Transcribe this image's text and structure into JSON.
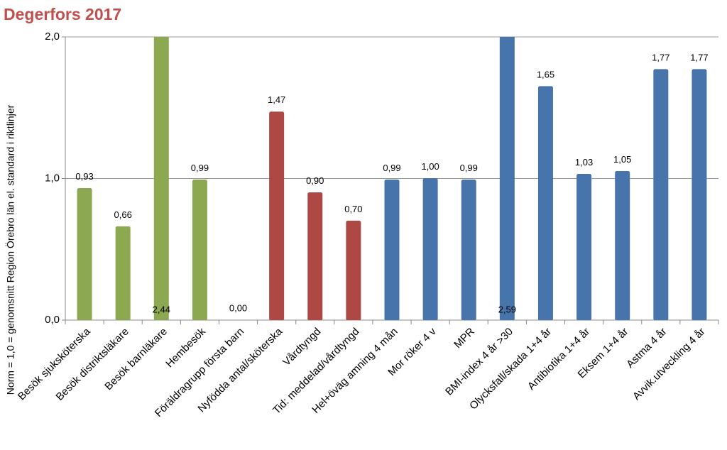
{
  "chart_data": {
    "type": "bar",
    "title": "Degerfors 2017",
    "y_label": "Norm = 1,0 = genomsnitt Region Örebro län el. standard i riktlinjer",
    "categories": [
      "Besök sjuksköterska",
      "Besök distriktsläkare",
      "Besök barnläkare",
      "Hembesök",
      "Föräldragrupp första barn",
      "Nyfödda antal/sköterska",
      "Vårdtyngd",
      "Tid: meddelad/vårdtyngd",
      "Hel+öväg amning 4 mån",
      "Mor röker 4 v",
      "MPR",
      "BMI-index 4 år >30",
      "Olycksfall/skada 1+4 år",
      "Antibiotika 1+4 år",
      "Eksem 1+4 år",
      "Astma 4 år",
      "Avvik.utveckling 4 år"
    ],
    "values": [
      0.93,
      0.66,
      2.44,
      0.99,
      0.0,
      1.47,
      0.9,
      0.7,
      0.99,
      1.0,
      0.99,
      2.59,
      1.65,
      1.03,
      1.05,
      1.77,
      1.77
    ],
    "value_labels": [
      "0,93",
      "0,66",
      "2,44",
      "0,99",
      "0,00",
      "1,47",
      "0,90",
      "0,70",
      "0,99",
      "1,00",
      "0,99",
      "2,59",
      "1,65",
      "1,03",
      "1,05",
      "1,77",
      "1,77"
    ],
    "colors": [
      "#9bbb59",
      "#9bbb59",
      "#9bbb59",
      "#9bbb59",
      "#9bbb59",
      "#c0504d",
      "#c0504d",
      "#c0504d",
      "#4f81bd",
      "#4f81bd",
      "#4f81bd",
      "#4f81bd",
      "#4f81bd",
      "#4f81bd",
      "#4f81bd",
      "#4f81bd",
      "#4f81bd"
    ],
    "ylim": [
      0,
      2
    ],
    "yticks": [
      {
        "value": 0,
        "label": "0,0"
      },
      {
        "value": 1,
        "label": "1,0"
      },
      {
        "value": 2,
        "label": "2,0"
      }
    ],
    "grid": true
  }
}
